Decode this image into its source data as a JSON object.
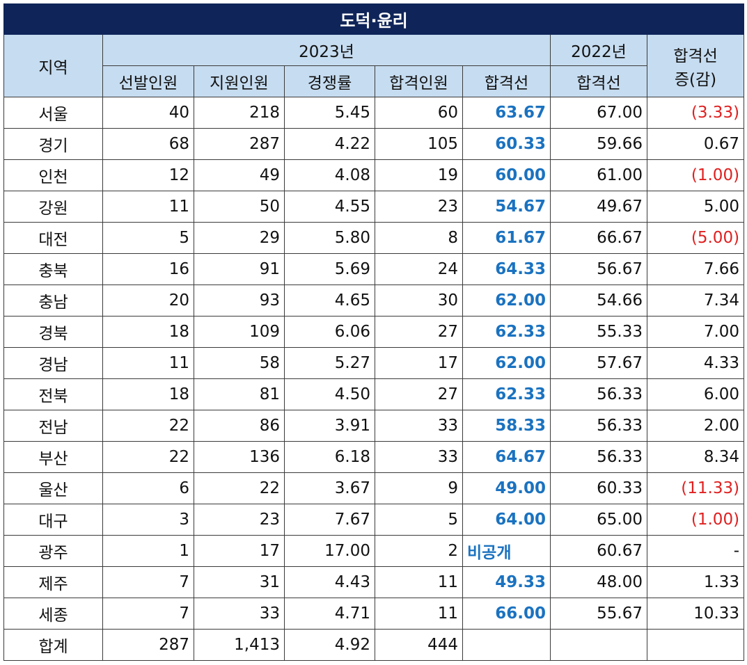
{
  "title": "도덕·윤리",
  "headers": {
    "region": "지역",
    "year2023": "2023년",
    "year2022": "2022년",
    "diff_line1": "합격선",
    "diff_line2": "증(감)",
    "sub": [
      "선발인원",
      "지원인원",
      "경쟁률",
      "합격인원",
      "합격선"
    ],
    "sub2022": "합격선"
  },
  "rows": [
    {
      "region": "서울",
      "sel": "40",
      "app": "218",
      "ratio": "5.45",
      "pass": "60",
      "cut": "63.67",
      "cut2022": "67.00",
      "diff": "(3.33)",
      "neg": true
    },
    {
      "region": "경기",
      "sel": "68",
      "app": "287",
      "ratio": "4.22",
      "pass": "105",
      "cut": "60.33",
      "cut2022": "59.66",
      "diff": "0.67",
      "neg": false
    },
    {
      "region": "인천",
      "sel": "12",
      "app": "49",
      "ratio": "4.08",
      "pass": "19",
      "cut": "60.00",
      "cut2022": "61.00",
      "diff": "(1.00)",
      "neg": true
    },
    {
      "region": "강원",
      "sel": "11",
      "app": "50",
      "ratio": "4.55",
      "pass": "23",
      "cut": "54.67",
      "cut2022": "49.67",
      "diff": "5.00",
      "neg": false
    },
    {
      "region": "대전",
      "sel": "5",
      "app": "29",
      "ratio": "5.80",
      "pass": "8",
      "cut": "61.67",
      "cut2022": "66.67",
      "diff": "(5.00)",
      "neg": true
    },
    {
      "region": "충북",
      "sel": "16",
      "app": "91",
      "ratio": "5.69",
      "pass": "24",
      "cut": "64.33",
      "cut2022": "56.67",
      "diff": "7.66",
      "neg": false
    },
    {
      "region": "충남",
      "sel": "20",
      "app": "93",
      "ratio": "4.65",
      "pass": "30",
      "cut": "62.00",
      "cut2022": "54.66",
      "diff": "7.34",
      "neg": false
    },
    {
      "region": "경북",
      "sel": "18",
      "app": "109",
      "ratio": "6.06",
      "pass": "27",
      "cut": "62.33",
      "cut2022": "55.33",
      "diff": "7.00",
      "neg": false
    },
    {
      "region": "경남",
      "sel": "11",
      "app": "58",
      "ratio": "5.27",
      "pass": "17",
      "cut": "62.00",
      "cut2022": "57.67",
      "diff": "4.33",
      "neg": false
    },
    {
      "region": "전북",
      "sel": "18",
      "app": "81",
      "ratio": "4.50",
      "pass": "27",
      "cut": "62.33",
      "cut2022": "56.33",
      "diff": "6.00",
      "neg": false
    },
    {
      "region": "전남",
      "sel": "22",
      "app": "86",
      "ratio": "3.91",
      "pass": "33",
      "cut": "58.33",
      "cut2022": "56.33",
      "diff": "2.00",
      "neg": false
    },
    {
      "region": "부산",
      "sel": "22",
      "app": "136",
      "ratio": "6.18",
      "pass": "33",
      "cut": "64.67",
      "cut2022": "56.33",
      "diff": "8.34",
      "neg": false
    },
    {
      "region": "울산",
      "sel": "6",
      "app": "22",
      "ratio": "3.67",
      "pass": "9",
      "cut": "49.00",
      "cut2022": "60.33",
      "diff": "(11.33)",
      "neg": true
    },
    {
      "region": "대구",
      "sel": "3",
      "app": "23",
      "ratio": "7.67",
      "pass": "5",
      "cut": "64.00",
      "cut2022": "65.00",
      "diff": "(1.00)",
      "neg": true
    },
    {
      "region": "광주",
      "sel": "1",
      "app": "17",
      "ratio": "17.00",
      "pass": "2",
      "cut": "비공개",
      "cut2022": "60.67",
      "diff": "-",
      "neg": false,
      "undisclosed": true
    },
    {
      "region": "제주",
      "sel": "7",
      "app": "31",
      "ratio": "4.43",
      "pass": "11",
      "cut": "49.33",
      "cut2022": "48.00",
      "diff": "1.33",
      "neg": false
    },
    {
      "region": "세종",
      "sel": "7",
      "app": "33",
      "ratio": "4.71",
      "pass": "11",
      "cut": "66.00",
      "cut2022": "55.67",
      "diff": "10.33",
      "neg": false
    },
    {
      "region": "합계",
      "sel": "287",
      "app": "1,413",
      "ratio": "4.92",
      "pass": "444",
      "cut": "",
      "cut2022": "",
      "diff": "",
      "neg": false
    }
  ],
  "colors": {
    "title_bg": "#0f2559",
    "header_bg": "#c6dcf0",
    "cutoff_text": "#1a72c0",
    "negative_text": "#e02020"
  }
}
